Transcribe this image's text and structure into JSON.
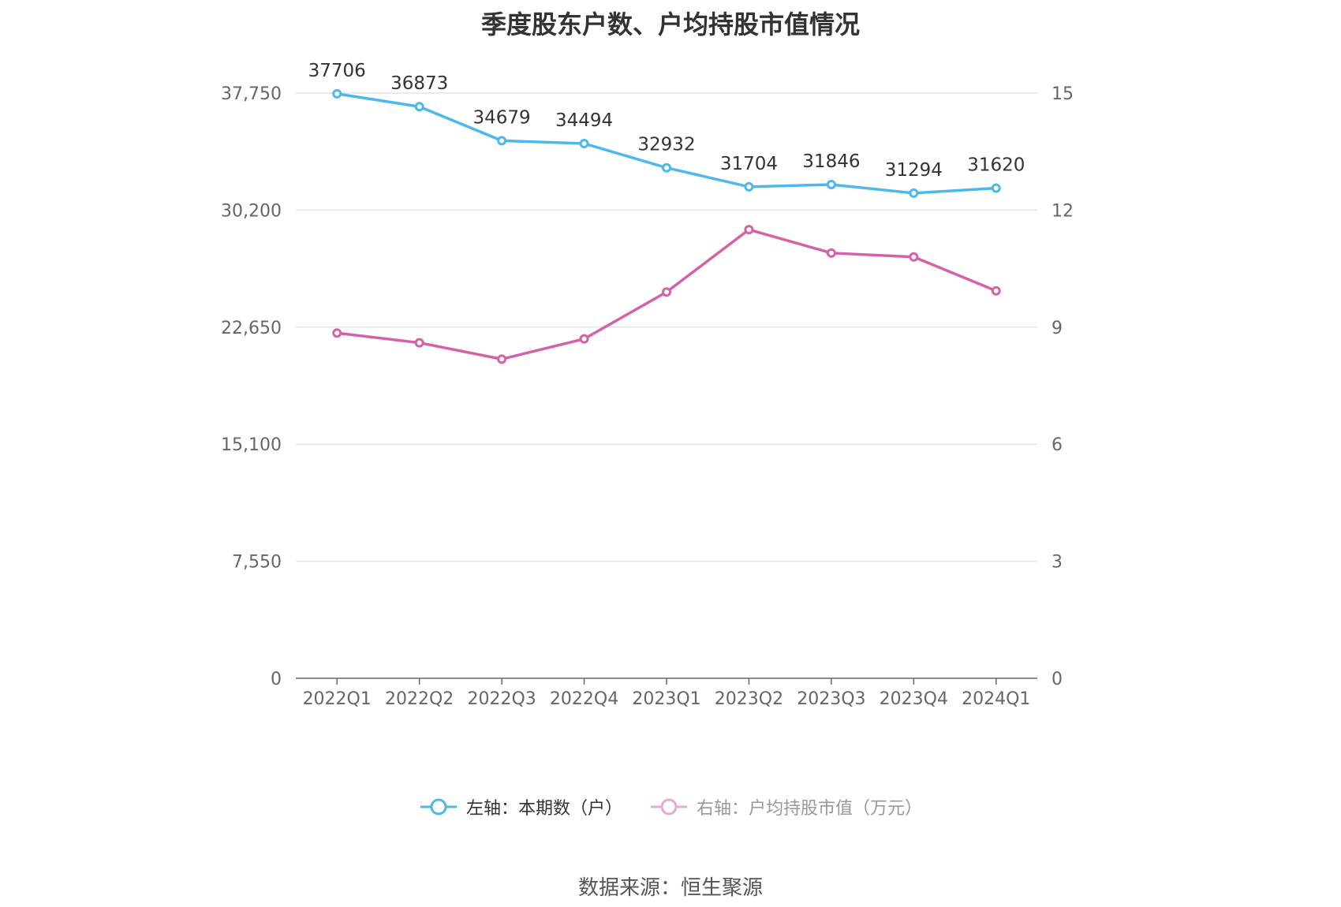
{
  "title": "季度股东户数、户均持股市值情况",
  "source": "数据来源：恒生聚源",
  "chart_data": {
    "type": "line",
    "categories": [
      "2022Q1",
      "2022Q2",
      "2022Q3",
      "2022Q4",
      "2023Q1",
      "2023Q2",
      "2023Q3",
      "2023Q4",
      "2024Q1"
    ],
    "left_axis": {
      "ticks": [
        0,
        7550,
        15100,
        22650,
        30200,
        37750
      ],
      "tick_labels": [
        "0",
        "7,550",
        "15,100",
        "22,650",
        "30,200",
        "37,750"
      ],
      "ylim": [
        0,
        37750
      ]
    },
    "right_axis": {
      "ticks": [
        0,
        3,
        6,
        9,
        12,
        15
      ],
      "tick_labels": [
        "0",
        "3",
        "6",
        "9",
        "12",
        "15"
      ],
      "ylim": [
        0,
        15
      ]
    },
    "series": [
      {
        "name": "左轴：本期数（户）",
        "axis": "left",
        "color": "#4db8ec",
        "values": [
          37706,
          36873,
          34679,
          34494,
          32932,
          31704,
          31846,
          31294,
          31620
        ],
        "labels_shown": true
      },
      {
        "name": "右轴：户均持股市值（万元）",
        "axis": "right",
        "color": "#d462a8",
        "legend_color": "#e8aacf",
        "values": [
          8.85,
          8.6,
          8.18,
          8.7,
          9.9,
          11.5,
          10.9,
          10.8,
          9.93
        ],
        "labels_shown": false
      }
    ]
  }
}
